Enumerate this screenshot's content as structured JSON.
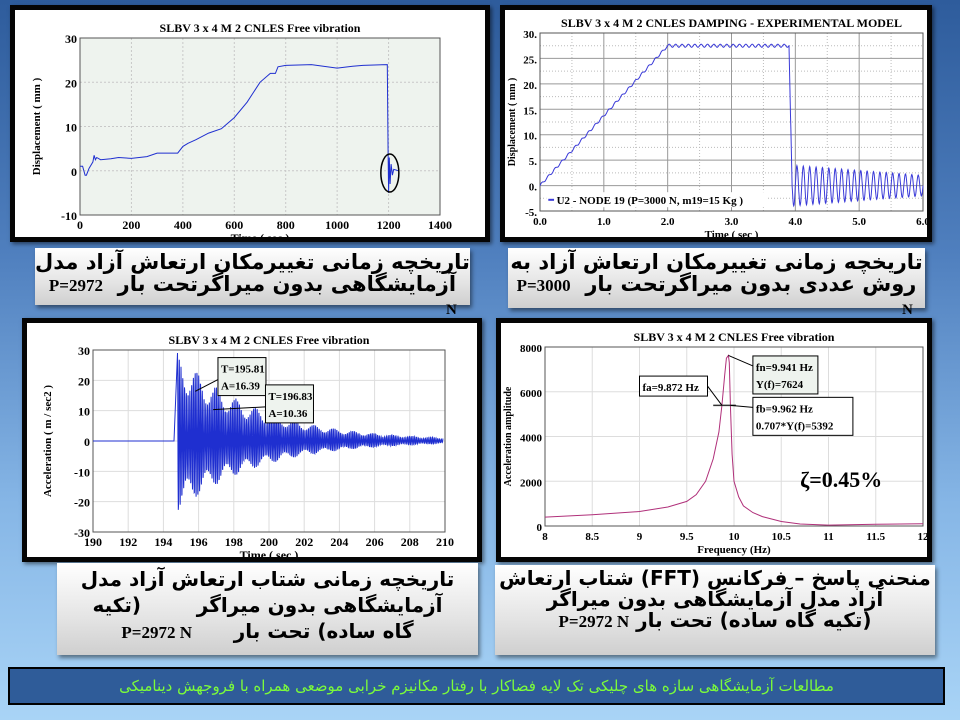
{
  "captions": {
    "c1": {
      "line1": "تاریخچه زمانی تغییرمکان ارتعاش آزاد مدل",
      "line2": "آزمایشگاهی بدون میراگرتحت بار",
      "load": "P=2972",
      "unit": "N"
    },
    "c2": {
      "line1": "تاریخچه زمانی تغییرمکان ارتعاش آزاد به",
      "line2": "روش عددی بدون میراگرتحت بار",
      "load": "P=3000",
      "unit": "N"
    },
    "c3": {
      "line1": "تاریخچه زمانی شتاب ارتعاش آزاد مدل",
      "line2": "آزمایشگاهی بدون میراگر        (تکیه",
      "line3": "گاه ساده) تحت بار",
      "load": "P=2972 N"
    },
    "c4": {
      "line1": "منحنی پاسخ – فرکانس (FFT) شتاب ارتعاش",
      "line2": "آزاد مدل آزمایشگاهی بدون میراگر",
      "line3": "(تکیه گاه ساده)  تحت بار",
      "load": "P=2972 N"
    }
  },
  "footer": {
    "text": "مطالعات آزمایشگاهی سازه های چلیکی تک لایه فضاکار با رفتار مکانیزم خرابی موضعی همراه با فروجهش دینامیکی"
  },
  "colors": {
    "line": "#1f2fd0",
    "fft_line": "#b0307a",
    "plot_bg": "#eef3ee",
    "grid": "#c8c8c8",
    "footer_text": "#7CFC3a"
  },
  "chart_data": [
    {
      "type": "line",
      "title": "SLBV 3 x 4 M 2 CNLES Free vibration",
      "xlabel": "Time ( sec )",
      "ylabel": "Displacement  ( mm )",
      "xlim": [
        0,
        1400
      ],
      "ylim": [
        -10,
        30
      ],
      "xticks": [
        0,
        200,
        400,
        600,
        800,
        1000,
        1200,
        1400
      ],
      "xtick_labels": [
        "0",
        "200",
        "400",
        "600",
        "800",
        "1000",
        "1200",
        "1400"
      ],
      "yticks": [
        -10,
        0,
        10,
        20,
        30
      ],
      "ytick_labels": [
        "-10",
        "0",
        "10",
        "20",
        "30"
      ],
      "grid": true,
      "highlight": "ellipse around free-vibration response near t=1200",
      "series": [
        {
          "x": [
            0,
            10,
            20,
            25,
            35,
            50,
            55,
            60,
            65,
            80,
            120,
            150,
            200,
            260,
            300,
            380,
            400,
            420,
            450,
            500,
            550,
            600,
            650,
            700,
            740,
            760,
            770,
            800,
            900,
            1000,
            1060,
            1100,
            1195,
            1198,
            1200,
            1203,
            1206,
            1210,
            1215,
            1220,
            1240
          ],
          "y": [
            1,
            1,
            -1,
            -1,
            0.5,
            2,
            3.5,
            2.5,
            3,
            2.5,
            2.7,
            3,
            2.8,
            3.2,
            4,
            4,
            5.5,
            6.2,
            7,
            8.5,
            9.5,
            12,
            15.5,
            20,
            22,
            22,
            23.5,
            23.8,
            24,
            23.2,
            23.6,
            23.8,
            24,
            4,
            -5,
            3,
            -3,
            1.5,
            -1,
            0.3,
            0
          ]
        }
      ]
    },
    {
      "type": "line",
      "title": "SLBV 3 x 4 M 2 CNLES DAMPING - EXPERIMENTAL MODEL",
      "xlabel": "Time ( sec )",
      "ylabel": "Displacement  ( mm )",
      "xlim": [
        0,
        6
      ],
      "ylim": [
        -5,
        30
      ],
      "xticks": [
        0,
        1,
        2,
        3,
        4,
        5,
        6
      ],
      "xtick_labels": [
        "0.0",
        "1.0",
        "2.0",
        "3.0",
        "4.0",
        "5.0",
        "6.0"
      ],
      "yticks": [
        -5,
        0,
        5,
        10,
        15,
        20,
        25,
        30
      ],
      "ytick_labels": [
        "-5.",
        "0.",
        "5.",
        "10.",
        "15.",
        "20.",
        "25.",
        "30."
      ],
      "grid": true,
      "legend": "bottom-left",
      "series": [
        {
          "name": "U2 - NODE 19 (P=3000 N, m19=15 Kg )",
          "ramp": {
            "x": [
              0,
              2.0
            ],
            "y": [
              0,
              27.5
            ]
          },
          "plateau": {
            "x": [
              2.0,
              3.9
            ],
            "y": 27.5,
            "ripple": 0.3
          },
          "free_vibration": {
            "x_start": 3.95,
            "x_end": 6.0,
            "frequency_hz": 10,
            "amplitude_start": 4,
            "amplitude_end": 2
          }
        }
      ]
    },
    {
      "type": "line",
      "title": "SLBV 3 x 4 M 2 CNLES Free vibration",
      "xlabel": "Time ( sec )",
      "ylabel": "Acceleration  ( m / sec2 )",
      "xlim": [
        190,
        210
      ],
      "ylim": [
        -30,
        30
      ],
      "xticks": [
        190,
        192,
        194,
        196,
        198,
        200,
        202,
        204,
        206,
        208,
        210
      ],
      "xtick_labels": [
        "190",
        "192",
        "194",
        "196",
        "198",
        "200",
        "202",
        "204",
        "206",
        "208",
        "210"
      ],
      "yticks": [
        -30,
        -20,
        -10,
        0,
        10,
        20,
        30
      ],
      "ytick_labels": [
        "-30",
        "-20",
        "-10",
        "0",
        "10",
        "20",
        "30"
      ],
      "grid": true,
      "series": [
        {
          "quiet_until": 194.8,
          "x_end": 209.9,
          "frequency_hz": 9.94,
          "peak": 27.3,
          "trough": -22,
          "end_amplitude": 1
        }
      ],
      "annotations": [
        {
          "label1": "T=195.81",
          "label2": "A=16.39",
          "x": 195.81,
          "y": 16.39
        },
        {
          "label1": "T=196.83",
          "label2": "A=10.36",
          "x": 196.83,
          "y": 10.36
        }
      ]
    },
    {
      "type": "line",
      "title": "SLBV 3 x 4 M 2 CNLES Free vibration",
      "xlabel": "Frequency (Hz)",
      "ylabel": "Acceleration amplitude",
      "xlim": [
        8,
        12
      ],
      "ylim": [
        0,
        8000
      ],
      "xticks": [
        8,
        8.5,
        9,
        9.5,
        10,
        10.5,
        11,
        11.5,
        12
      ],
      "xtick_labels": [
        "8",
        "8.5",
        "9",
        "9.5",
        "10",
        "10.5",
        "11",
        "11.5",
        "12"
      ],
      "yticks": [
        0,
        2000,
        4000,
        6000,
        8000
      ],
      "ytick_labels": [
        "0",
        "2000",
        "4000",
        "6000",
        "8000"
      ],
      "grid": true,
      "series": [
        {
          "x": [
            8,
            8.5,
            9,
            9.3,
            9.5,
            9.6,
            9.7,
            9.78,
            9.84,
            9.872,
            9.9,
            9.92,
            9.941,
            9.95,
            9.962,
            9.98,
            10.0,
            10.05,
            10.1,
            10.2,
            10.3,
            10.5,
            10.7,
            11,
            11.5,
            12
          ],
          "y": [
            400,
            500,
            650,
            850,
            1100,
            1400,
            2000,
            3000,
            4200,
            5392,
            6700,
            7500,
            7624,
            7300,
            5392,
            3200,
            2000,
            1300,
            900,
            600,
            420,
            200,
            90,
            40,
            80,
            100
          ]
        }
      ],
      "half_power": {
        "y": 5392,
        "x": [
          9.78,
          10.02
        ]
      },
      "annotations": [
        {
          "label1": "fn=9.941 Hz",
          "label2": "Y(f)=7624",
          "x": 9.941,
          "y": 7624
        },
        {
          "label1": "fa=9.872 Hz",
          "x": 9.872,
          "y": 5392
        },
        {
          "label1": "fb=9.962 Hz",
          "label2": "0.707*Y(f)=5392",
          "x": 9.962,
          "y": 5392
        }
      ],
      "damping_label": "ζ=0.45%"
    }
  ]
}
